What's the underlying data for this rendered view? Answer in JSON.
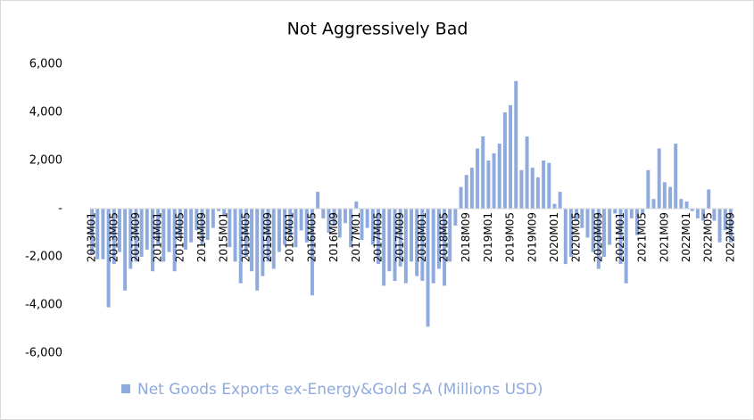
{
  "chart_data": {
    "type": "bar",
    "title": "Not Aggressively Bad",
    "categories": [
      "2013M01",
      null,
      null,
      null,
      "2013M05",
      null,
      null,
      null,
      "2013M09",
      null,
      null,
      null,
      "2014M01",
      null,
      null,
      null,
      "2014M05",
      null,
      null,
      null,
      "2014M09",
      null,
      null,
      null,
      "2015M01",
      null,
      null,
      null,
      "2015M05",
      null,
      null,
      null,
      "2015M09",
      null,
      null,
      null,
      "2016M01",
      null,
      null,
      null,
      "2016M05",
      null,
      null,
      null,
      "2016M09",
      null,
      null,
      null,
      "2017M01",
      null,
      null,
      null,
      "2017M05",
      null,
      null,
      null,
      "2017M09",
      null,
      null,
      null,
      "2018M01",
      null,
      null,
      null,
      "2018M05",
      null,
      null,
      null,
      "2018M09",
      null,
      null,
      null,
      "2019M01",
      null,
      null,
      null,
      "2019M05",
      null,
      null,
      null,
      "2019M09",
      null,
      null,
      null,
      "2020M01",
      null,
      null,
      null,
      "2020M05",
      null,
      null,
      null,
      "2020M09",
      null,
      null,
      null,
      "2021M01",
      null,
      null,
      null,
      "2021M05",
      null,
      null,
      null,
      "2021M09",
      null,
      null,
      null,
      "2022M01",
      null,
      null,
      null,
      "2022M05",
      null,
      null,
      null,
      "2022M09"
    ],
    "series": [
      {
        "name": "Net Goods Exports ex-Energy&Gold SA (Millions USD)",
        "color": "#8faadc",
        "values": [
          -1900,
          -2100,
          -2100,
          -4100,
          -2300,
          -1800,
          -3400,
          -2500,
          -2200,
          -2000,
          -1700,
          -2600,
          -1500,
          -2200,
          -1800,
          -2600,
          -1200,
          -1700,
          -1400,
          -900,
          -1500,
          -1300,
          -800,
          -100,
          -300,
          -1600,
          -2200,
          -3100,
          -2000,
          -2600,
          -3400,
          -2800,
          -2200,
          -2500,
          -1800,
          -1500,
          -1200,
          -1600,
          -900,
          -1400,
          -3600,
          700,
          -400,
          -1000,
          -700,
          -1200,
          -600,
          -1600,
          300,
          -1300,
          -800,
          -1500,
          -2300,
          -3200,
          -2600,
          -3000,
          -2400,
          -3100,
          -2200,
          -2800,
          -3000,
          -4900,
          -3100,
          -2500,
          -3200,
          -2200,
          -700,
          900,
          1400,
          1700,
          2500,
          3000,
          2000,
          2300,
          2700,
          4000,
          4300,
          5300,
          1600,
          3000,
          1700,
          1300,
          2000,
          1900,
          200,
          700,
          -2300,
          -2000,
          -500,
          -800,
          -1200,
          -1800,
          -2500,
          -2000,
          -1500,
          -200,
          -2300,
          -3100,
          -400,
          -1100,
          -200,
          1600,
          400,
          2500,
          1100,
          900,
          2700,
          400,
          300,
          -100,
          -400,
          -500,
          800,
          -500,
          -1400,
          -900,
          -1400
        ]
      }
    ],
    "ylim": [
      -6000,
      6000
    ],
    "yticks": [
      {
        "value": -6000,
        "label": "-6,000"
      },
      {
        "value": -4000,
        "label": "-4,000"
      },
      {
        "value": -2000,
        "label": "-2,000"
      },
      {
        "value": 0,
        "label": "-"
      },
      {
        "value": 2000,
        "label": "2,000"
      },
      {
        "value": 4000,
        "label": "4,000"
      },
      {
        "value": 6000,
        "label": "6,000"
      }
    ],
    "legend": "bottom"
  }
}
